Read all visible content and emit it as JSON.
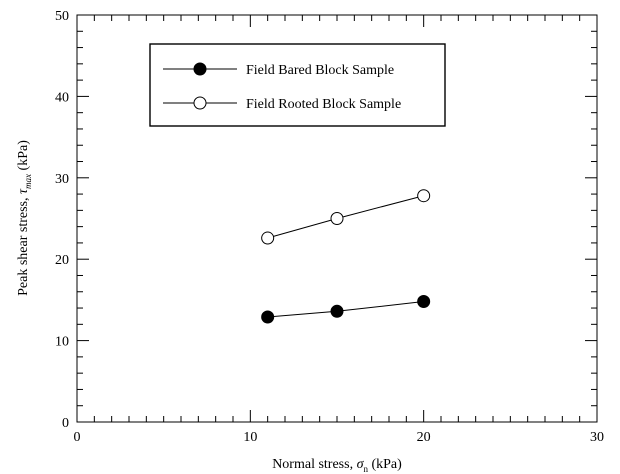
{
  "chart_data": {
    "type": "scatter",
    "xlabel": {
      "main": "Normal stress, ",
      "symbol": "σ",
      "sub": "n",
      "unit": " (kPa)"
    },
    "ylabel": {
      "main": "Peak shear stress, ",
      "symbol": "τ",
      "sub": "max",
      "unit": "  (kPa)"
    },
    "xlim": [
      0,
      30
    ],
    "ylim": [
      0,
      50
    ],
    "x_ticks": [
      "0",
      "10",
      "20",
      "30"
    ],
    "y_ticks": [
      "0",
      "10",
      "20",
      "30",
      "40",
      "50"
    ],
    "grid": false,
    "legend_position": "top-left",
    "series": [
      {
        "name": "Field Bared Block Sample",
        "marker": "filled-circle",
        "color": "#000000",
        "points": [
          {
            "x": 11,
            "y": 12.9
          },
          {
            "x": 15,
            "y": 13.6
          },
          {
            "x": 20,
            "y": 14.8
          }
        ]
      },
      {
        "name": "Field Rooted Block Sample",
        "marker": "open-circle",
        "color": "#000000",
        "points": [
          {
            "x": 11,
            "y": 22.6
          },
          {
            "x": 15,
            "y": 25.0
          },
          {
            "x": 20,
            "y": 27.8
          }
        ]
      }
    ]
  }
}
